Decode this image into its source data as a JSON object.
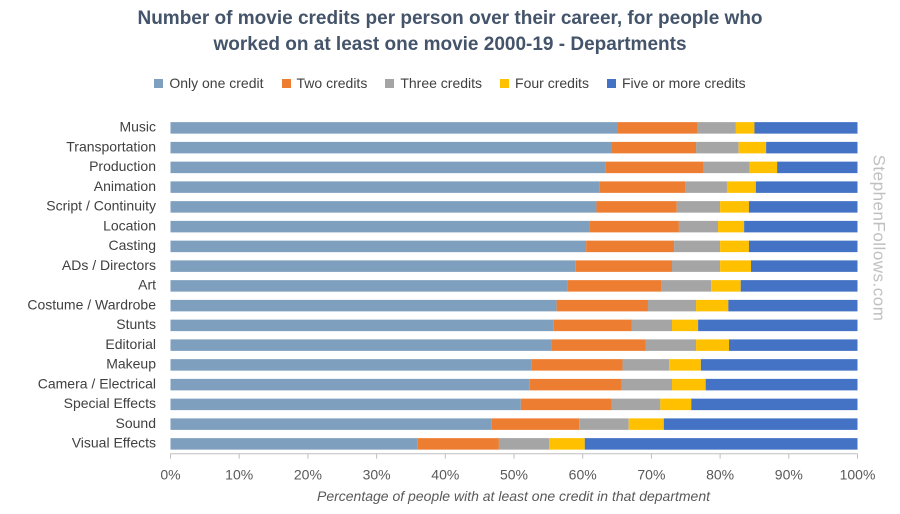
{
  "chart_data": {
    "type": "bar",
    "orientation": "horizontal",
    "stacked": true,
    "title_lines": [
      "Number of movie credits per person over their career, for people who",
      "worked on at least one movie 2000-19 - Departments"
    ],
    "xlabel": "Percentage of people with at least one credit in that department",
    "ylabel": "",
    "xlim": [
      0,
      100
    ],
    "x_ticks": [
      "0%",
      "10%",
      "20%",
      "30%",
      "40%",
      "50%",
      "60%",
      "70%",
      "80%",
      "90%",
      "100%"
    ],
    "legend_position": "top",
    "categories": [
      "Music",
      "Transportation",
      "Production",
      "Animation",
      "Script / Continuity",
      "Location",
      "Casting",
      "ADs / Directors",
      "Art",
      "Costume / Wardrobe",
      "Stunts",
      "Editorial",
      "Makeup",
      "Camera / Electrical",
      "Special Effects",
      "Sound",
      "Visual Effects"
    ],
    "series": [
      {
        "name": "Only one credit",
        "color": "#7f9fbf",
        "values": [
          65,
          64.2,
          63.3,
          62.4,
          62,
          61,
          60.5,
          59,
          57.8,
          56.2,
          55.8,
          55.4,
          52.5,
          52.3,
          51,
          46.7,
          36
        ]
      },
      {
        "name": "Two credits",
        "color": "#ed7d31",
        "values": [
          11.7,
          12.3,
          14.3,
          12.6,
          11.7,
          13,
          12.8,
          14,
          13.7,
          13.3,
          11.3,
          13.8,
          13.3,
          13.4,
          13.2,
          12.8,
          11.8
        ]
      },
      {
        "name": "Three credits",
        "color": "#a5a5a5",
        "values": [
          5.6,
          6.2,
          6.7,
          6,
          6.3,
          5.7,
          6.7,
          7,
          7.2,
          7,
          5.9,
          7.3,
          6.8,
          7.3,
          7.1,
          7.2,
          7.3
        ]
      },
      {
        "name": "Four credits",
        "color": "#ffc000",
        "values": [
          2.7,
          4,
          4,
          4.2,
          4.2,
          3.8,
          4.2,
          4.5,
          4.3,
          4.7,
          3.8,
          4.8,
          4.6,
          4.9,
          4.5,
          5.1,
          5.2
        ]
      },
      {
        "name": "Five or more credits",
        "color": "#4472c4",
        "values": [
          15,
          13.3,
          11.7,
          14.8,
          15.8,
          16.5,
          15.8,
          15.5,
          17,
          18.8,
          23.2,
          18.7,
          22.8,
          22.1,
          24.2,
          28.2,
          39.7
        ]
      }
    ],
    "watermark": "StephenFollows.com"
  }
}
